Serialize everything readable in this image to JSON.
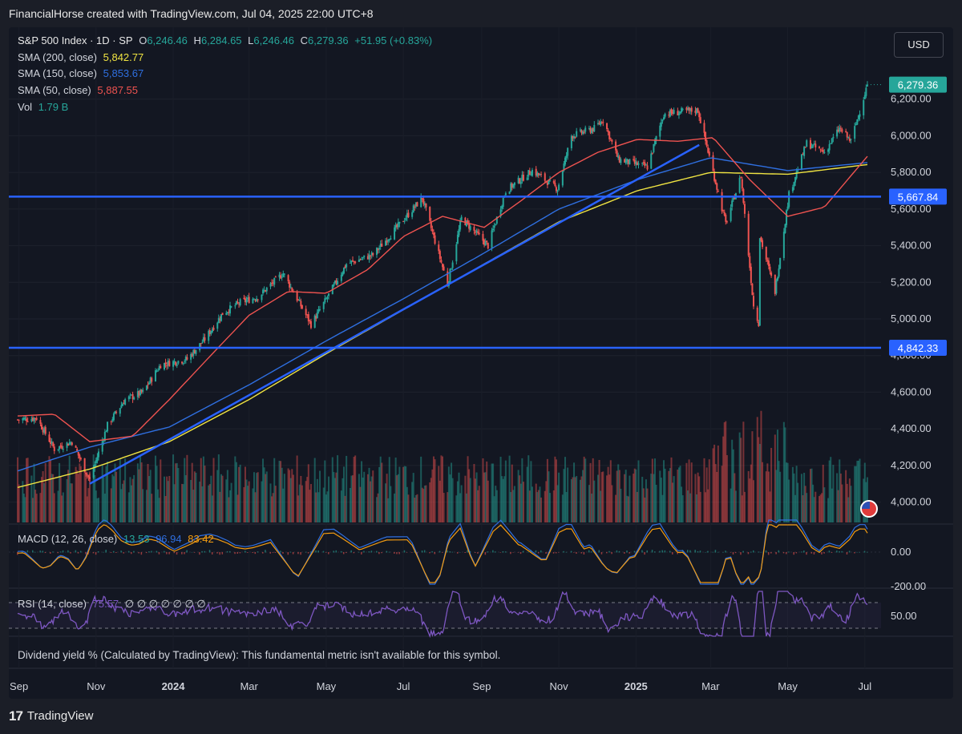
{
  "header": {
    "title": "FinancialHorse created with TradingView.com, Jul 04, 2025 22:00 UTC+8"
  },
  "legend": {
    "symbol": "S&P 500 Index · 1D · SP",
    "o_label": "O",
    "o_value": "6,246.46",
    "h_label": "H",
    "h_value": "6,284.65",
    "l_label": "L",
    "l_value": "6,246.46",
    "c_label": "C",
    "c_value": "6,279.36",
    "change": "+51.95 (+0.83%)",
    "sma200_label": "SMA (200, close)",
    "sma200_value": "5,842.77",
    "sma150_label": "SMA (150, close)",
    "sma150_value": "5,853.67",
    "sma50_label": "SMA (50, close)",
    "sma50_value": "5,887.55",
    "vol_label": "Vol",
    "vol_value": "1.79 B"
  },
  "currency_button": "USD",
  "price_badges": {
    "last": "6,279.36",
    "upper_line": "5,667.84",
    "lower_line": "4,842.33"
  },
  "macd": {
    "label": "MACD (12, 26, close)",
    "v1": "13.53",
    "v2": "96.94",
    "v3": "83.42",
    "ticks": [
      "0.00",
      "-200.00"
    ]
  },
  "rsi": {
    "label": "RSI (14, close)",
    "value": "75.57",
    "placeholders": "∅ ∅ ∅ ∅ ∅ ∅ ∅",
    "ticks": [
      "50.00"
    ]
  },
  "dividend_text": "Dividend yield % (Calculated by TradingView): This fundamental metric isn't available for this symbol.",
  "footer": {
    "brand": "TradingView",
    "logo": "17"
  },
  "colors": {
    "up": "#26a69a",
    "down": "#ef5350",
    "sma200": "#f0e442",
    "sma150": "#2f6fe0",
    "sma50": "#ef5350",
    "hline": "#2962ff",
    "rsi": "#7e57c2",
    "badge_last": "#26a69a",
    "badge_line": "#2962ff"
  },
  "chart_data": {
    "type": "line",
    "title": "S&P 500 Index · 1D · SP",
    "x_ticks": [
      "Sep",
      "Nov",
      "2024",
      "Mar",
      "May",
      "Jul",
      "Sep",
      "Nov",
      "2025",
      "Mar",
      "May",
      "Jul"
    ],
    "y_ticks": [
      "4,000.00",
      "4,200.00",
      "4,400.00",
      "4,600.00",
      "4,800.00",
      "5,000.00",
      "5,200.00",
      "5,400.00",
      "5,600.00",
      "5,800.00",
      "6,000.00",
      "6,200.00"
    ],
    "ylim": [
      3880,
      6330
    ],
    "horizontal_lines": [
      5667.84,
      4842.33
    ],
    "trendline": [
      {
        "date": "2023-10-27",
        "price": 4100
      },
      {
        "date": "2025-02-20",
        "price": 5950
      }
    ],
    "series": [
      {
        "name": "S&P 500 Index",
        "points": [
          [
            "2023-08-31",
            4450
          ],
          [
            "2023-09-15",
            4460
          ],
          [
            "2023-09-29",
            4290
          ],
          [
            "2023-10-13",
            4330
          ],
          [
            "2023-10-27",
            4120
          ],
          [
            "2023-11-10",
            4420
          ],
          [
            "2023-11-24",
            4560
          ],
          [
            "2023-12-08",
            4600
          ],
          [
            "2023-12-22",
            4750
          ],
          [
            "2024-01-12",
            4780
          ],
          [
            "2024-01-26",
            4890
          ],
          [
            "2024-02-09",
            5030
          ],
          [
            "2024-02-23",
            5090
          ],
          [
            "2024-03-08",
            5120
          ],
          [
            "2024-03-28",
            5250
          ],
          [
            "2024-04-19",
            4970
          ],
          [
            "2024-05-03",
            5130
          ],
          [
            "2024-05-17",
            5300
          ],
          [
            "2024-06-07",
            5350
          ],
          [
            "2024-06-21",
            5460
          ],
          [
            "2024-07-16",
            5660
          ],
          [
            "2024-08-05",
            5190
          ],
          [
            "2024-08-16",
            5550
          ],
          [
            "2024-09-06",
            5400
          ],
          [
            "2024-09-20",
            5700
          ],
          [
            "2024-10-11",
            5810
          ],
          [
            "2024-10-31",
            5710
          ],
          [
            "2024-11-11",
            6000
          ],
          [
            "2024-11-29",
            6040
          ],
          [
            "2024-12-06",
            6090
          ],
          [
            "2024-12-18",
            5870
          ],
          [
            "2025-01-10",
            5830
          ],
          [
            "2025-01-23",
            6120
          ],
          [
            "2025-02-19",
            6140
          ],
          [
            "2025-03-13",
            5520
          ],
          [
            "2025-03-25",
            5780
          ],
          [
            "2025-04-04",
            5070
          ],
          [
            "2025-04-08",
            4980
          ],
          [
            "2025-04-09",
            5450
          ],
          [
            "2025-04-21",
            5150
          ],
          [
            "2025-05-02",
            5680
          ],
          [
            "2025-05-16",
            5960
          ],
          [
            "2025-05-30",
            5910
          ],
          [
            "2025-06-11",
            6040
          ],
          [
            "2025-06-20",
            5970
          ],
          [
            "2025-07-03",
            6279.36
          ]
        ]
      },
      {
        "name": "SMA (200, close)",
        "points": [
          [
            "2023-08-31",
            4080
          ],
          [
            "2023-10-27",
            4180
          ],
          [
            "2023-12-29",
            4330
          ],
          [
            "2024-03-01",
            4560
          ],
          [
            "2024-05-01",
            4810
          ],
          [
            "2024-07-01",
            5050
          ],
          [
            "2024-09-03",
            5300
          ],
          [
            "2024-11-01",
            5530
          ],
          [
            "2025-01-02",
            5700
          ],
          [
            "2025-03-01",
            5800
          ],
          [
            "2025-05-01",
            5790
          ],
          [
            "2025-07-03",
            5842.77
          ]
        ]
      },
      {
        "name": "SMA (150, close)",
        "points": [
          [
            "2023-08-31",
            4170
          ],
          [
            "2023-10-27",
            4300
          ],
          [
            "2023-12-29",
            4410
          ],
          [
            "2024-03-01",
            4640
          ],
          [
            "2024-05-01",
            4880
          ],
          [
            "2024-07-01",
            5110
          ],
          [
            "2024-09-03",
            5360
          ],
          [
            "2024-11-01",
            5600
          ],
          [
            "2025-01-02",
            5760
          ],
          [
            "2025-03-01",
            5880
          ],
          [
            "2025-05-01",
            5810
          ],
          [
            "2025-07-03",
            5853.67
          ]
        ]
      },
      {
        "name": "SMA (50, close)",
        "points": [
          [
            "2023-08-31",
            4470
          ],
          [
            "2023-09-29",
            4480
          ],
          [
            "2023-10-27",
            4330
          ],
          [
            "2023-11-30",
            4360
          ],
          [
            "2023-12-29",
            4560
          ],
          [
            "2024-02-01",
            4810
          ],
          [
            "2024-03-01",
            5020
          ],
          [
            "2024-04-01",
            5150
          ],
          [
            "2024-05-01",
            5140
          ],
          [
            "2024-06-03",
            5270
          ],
          [
            "2024-07-01",
            5450
          ],
          [
            "2024-08-01",
            5560
          ],
          [
            "2024-09-03",
            5500
          ],
          [
            "2024-10-01",
            5640
          ],
          [
            "2024-11-01",
            5800
          ],
          [
            "2024-12-02",
            5910
          ],
          [
            "2025-01-02",
            5980
          ],
          [
            "2025-02-03",
            5970
          ],
          [
            "2025-03-03",
            5990
          ],
          [
            "2025-04-01",
            5760
          ],
          [
            "2025-05-01",
            5560
          ],
          [
            "2025-05-30",
            5610
          ],
          [
            "2025-07-03",
            5887.55
          ]
        ]
      }
    ]
  }
}
